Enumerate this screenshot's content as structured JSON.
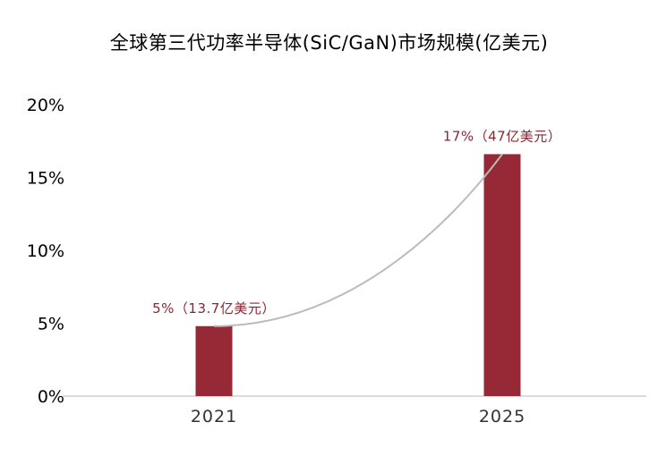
{
  "title": "全球第三代功率半导体(SiC/GaN)市场规模(亿美元)",
  "chart_data": {
    "type": "bar",
    "title": "全球第三代功率半导体(SiC/GaN)市场规模(亿美元)",
    "categories": [
      "2021",
      "2025"
    ],
    "series": [
      {
        "values": [
          4.8,
          16.6
        ],
        "color": "#962935"
      }
    ],
    "data_labels": [
      "5%（13.7亿美元）",
      "17%（47亿美元）"
    ],
    "ylim": [
      0,
      20
    ],
    "yticks": [
      0,
      5,
      10,
      15,
      20
    ],
    "ytick_labels": [
      "0%",
      "5%",
      "10%",
      "15%",
      "20%"
    ],
    "trend_line": {
      "color": "#bbbbbb",
      "style": "curve"
    },
    "grid": false,
    "legend": "none"
  }
}
